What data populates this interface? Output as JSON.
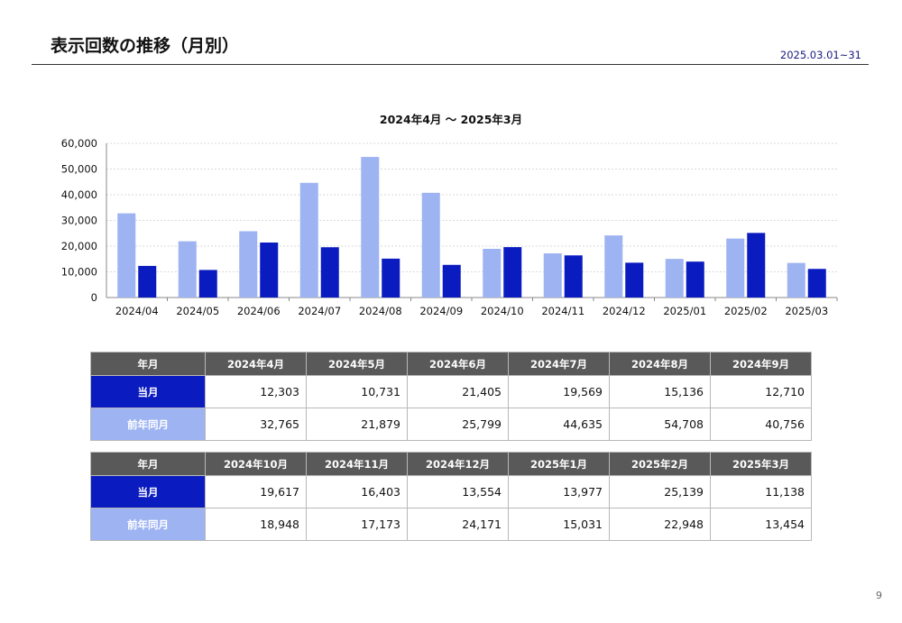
{
  "header": {
    "title": "表示回数の推移（月別）",
    "date_range": "2025.03.01~31"
  },
  "colors": {
    "current": "#0a1bbf",
    "previous": "#9db3f2",
    "table_header": "#595959"
  },
  "chart_data": {
    "type": "bar",
    "title": "2024年4月 ～ 2025年3月",
    "categories": [
      "2024/04",
      "2024/05",
      "2024/06",
      "2024/07",
      "2024/08",
      "2024/09",
      "2024/10",
      "2024/11",
      "2024/12",
      "2025/01",
      "2025/02",
      "2025/03"
    ],
    "series": [
      {
        "name": "前年同月",
        "color": "#9db3f2",
        "values": [
          32765,
          21879,
          25799,
          44635,
          54708,
          40756,
          18948,
          17173,
          24171,
          15031,
          22948,
          13454
        ]
      },
      {
        "name": "当月",
        "color": "#0a1bbf",
        "values": [
          12303,
          10731,
          21405,
          19569,
          15136,
          12710,
          19617,
          16403,
          13554,
          13977,
          25139,
          11138
        ]
      }
    ],
    "ylim": [
      0,
      60000
    ],
    "yticks": [
      "0",
      "10,000",
      "20,000",
      "30,000",
      "40,000",
      "50,000",
      "60,000"
    ],
    "grid": true
  },
  "tables": [
    {
      "header_label": "年月",
      "months": [
        "2024年4月",
        "2024年5月",
        "2024年6月",
        "2024年7月",
        "2024年8月",
        "2024年9月"
      ],
      "current_label": "当月",
      "current": [
        "12,303",
        "10,731",
        "21,405",
        "19,569",
        "15,136",
        "12,710"
      ],
      "previous_label": "前年同月",
      "previous": [
        "32,765",
        "21,879",
        "25,799",
        "44,635",
        "54,708",
        "40,756"
      ]
    },
    {
      "header_label": "年月",
      "months": [
        "2024年10月",
        "2024年11月",
        "2024年12月",
        "2025年1月",
        "2025年2月",
        "2025年3月"
      ],
      "current_label": "当月",
      "current": [
        "19,617",
        "16,403",
        "13,554",
        "13,977",
        "25,139",
        "11,138"
      ],
      "previous_label": "前年同月",
      "previous": [
        "18,948",
        "17,173",
        "24,171",
        "15,031",
        "22,948",
        "13,454"
      ]
    }
  ],
  "page_number": "9"
}
